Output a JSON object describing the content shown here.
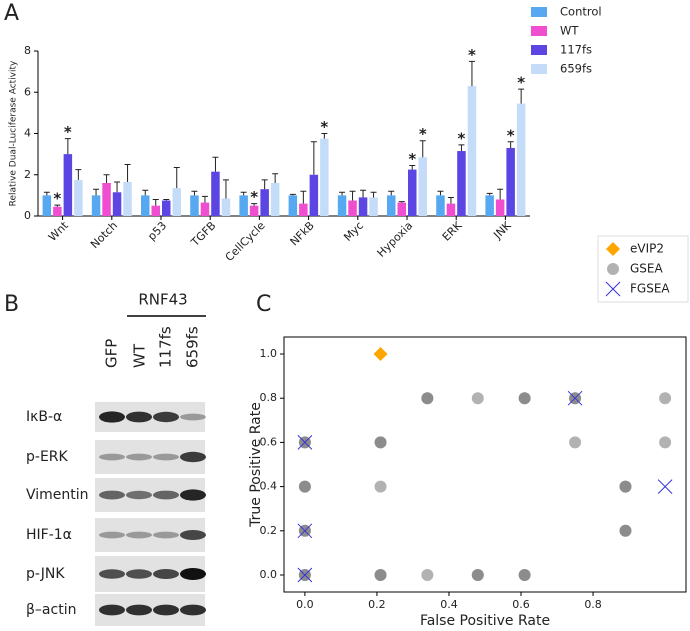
{
  "panel_labels": [
    "A",
    "B",
    "C"
  ],
  "chart_data": [
    {
      "type": "bar",
      "ylabel": "Relative Dual-Luciferase Activity",
      "categories": [
        "Wnt",
        "Notch",
        "p53",
        "TGFB",
        "CellCycle",
        "NFkB",
        "Myc",
        "Hypoxia",
        "ERK",
        "JNK"
      ],
      "ylim": [
        0,
        8
      ],
      "yticks": [
        0,
        2,
        4,
        6,
        8
      ],
      "legend": "upper right",
      "significance_label": "*",
      "series": [
        {
          "name": "Control",
          "color": "#56a9f0",
          "values": [
            1.0,
            1.0,
            1.0,
            1.0,
            1.0,
            1.0,
            1.0,
            1.0,
            1.0,
            1.0
          ],
          "errors": [
            0.15,
            0.3,
            0.25,
            0.2,
            0.15,
            0.05,
            0.15,
            0.2,
            0.2,
            0.1
          ],
          "significant": [
            false,
            false,
            false,
            false,
            false,
            false,
            false,
            false,
            false,
            false
          ]
        },
        {
          "name": "WT",
          "color": "#f04ed0",
          "values": [
            0.45,
            1.6,
            0.5,
            0.65,
            0.5,
            0.6,
            0.75,
            0.65,
            0.6,
            0.8
          ],
          "errors": [
            0.08,
            0.4,
            0.3,
            0.3,
            0.1,
            0.6,
            0.45,
            0.05,
            0.3,
            0.5
          ],
          "significant": [
            true,
            false,
            false,
            false,
            true,
            false,
            false,
            false,
            false,
            false
          ]
        },
        {
          "name": "117fs",
          "color": "#5b45e3",
          "values": [
            3.0,
            1.15,
            0.75,
            2.15,
            1.3,
            2.0,
            0.9,
            2.25,
            3.15,
            3.3
          ],
          "errors": [
            0.75,
            0.5,
            0.05,
            0.7,
            0.45,
            1.6,
            0.35,
            0.2,
            0.3,
            0.3
          ],
          "significant": [
            true,
            false,
            false,
            false,
            false,
            false,
            false,
            true,
            true,
            true
          ]
        },
        {
          "name": "659fs",
          "color": "#c4dcf7",
          "values": [
            1.75,
            1.65,
            1.35,
            0.85,
            1.6,
            3.75,
            0.9,
            2.85,
            6.3,
            5.45
          ],
          "errors": [
            0.5,
            0.85,
            1.0,
            0.9,
            0.45,
            0.25,
            0.25,
            0.8,
            1.2,
            0.7
          ],
          "significant": [
            false,
            false,
            false,
            false,
            false,
            true,
            false,
            true,
            true,
            true
          ]
        }
      ]
    },
    {
      "type": "scatter",
      "xlabel": "False Positive Rate",
      "ylabel": "True Positive Rate",
      "xlim": [
        -0.058,
        1.058
      ],
      "ylim": [
        -0.077,
        1.077
      ],
      "xticks": [
        {
          "value": 0,
          "label": "0.0"
        },
        {
          "value": 0.2,
          "label": "0.2"
        },
        {
          "value": 0.4,
          "label": "0.4"
        },
        {
          "value": 0.6,
          "label": "0.6"
        },
        {
          "value": 0.8,
          "label": "0.8"
        }
      ],
      "yticks": [
        {
          "value": 0,
          "label": "0.0"
        },
        {
          "value": 0.2,
          "label": "0.2"
        },
        {
          "value": 0.4,
          "label": "0.4"
        },
        {
          "value": 0.6,
          "label": "0.6"
        },
        {
          "value": 0.8,
          "label": "0.8"
        },
        {
          "value": 1,
          "label": "1.0"
        }
      ],
      "legend": "upper right",
      "series": [
        {
          "name": "eVIP2",
          "color": "#ffa500",
          "marker": "diamond",
          "x": [
            0.21
          ],
          "values": [
            1.0
          ]
        },
        {
          "name": "GSEA",
          "color": "#666666",
          "marker": "circle",
          "x": [
            0.34,
            0.34,
            0.48,
            0.61,
            0.61,
            0.75,
            0.75,
            1.0,
            0,
            0,
            0.21,
            0.21,
            0.75,
            1.0,
            0,
            0,
            0.21,
            0.89,
            0.89,
            0,
            0,
            0.89,
            0.89,
            0,
            0,
            0.21,
            0.21,
            0.34,
            0.48,
            0.48,
            0.61,
            0.61
          ],
          "values": [
            0.8,
            0.8,
            0.8,
            0.8,
            0.8,
            0.8,
            0.8,
            0.8,
            0.6,
            0.6,
            0.6,
            0.6,
            0.6,
            0.6,
            0.4,
            0.4,
            0.4,
            0.4,
            0.4,
            0.2,
            0.2,
            0.2,
            0.2,
            0,
            0,
            0,
            0,
            0,
            0,
            0,
            0,
            0
          ]
        },
        {
          "name": "FGSEA",
          "color": "#3535d8",
          "marker": "x",
          "x": [
            0,
            0,
            0,
            0.75,
            1.0
          ],
          "values": [
            0.6,
            0.2,
            0,
            0.8,
            0.4
          ]
        }
      ]
    }
  ],
  "blot": {
    "group": "RNF43",
    "lanes": [
      "GFP",
      "WT",
      "117fs",
      "659fs"
    ],
    "proteins": [
      "IκB-α",
      "p-ERK",
      "Vimentin",
      "HIF-1α",
      "p-JNK",
      "β–actin"
    ]
  }
}
